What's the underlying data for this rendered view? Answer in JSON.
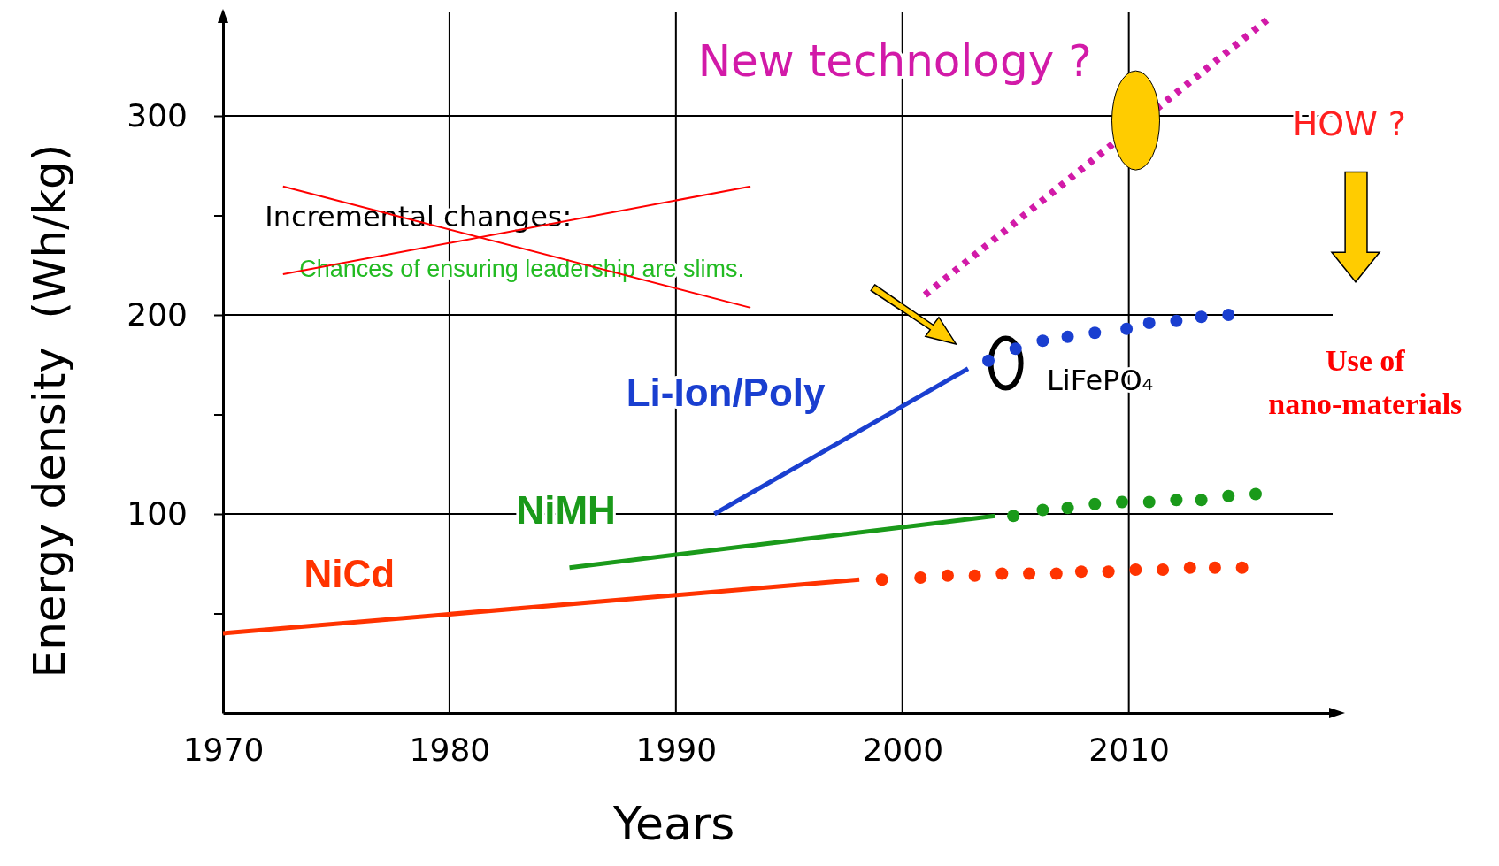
{
  "chart_data": {
    "type": "line",
    "xlabel": "Years",
    "ylabel": "Energy density  (Wh/kg)",
    "xlim": [
      1970,
      2019
    ],
    "ylim": [
      0,
      352
    ],
    "xticks": [
      1970,
      1980,
      1990,
      2000,
      2010
    ],
    "yticks": [
      {
        "value": 50,
        "label": null
      },
      100,
      {
        "value": 150,
        "label": null
      },
      200,
      {
        "value": 250,
        "label": null
      },
      300
    ],
    "grid": true,
    "legend": false,
    "line_style": "solid",
    "series": [
      {
        "name": "NiCd",
        "color": "#ff3300",
        "x": [
          1970,
          1998.1
        ],
        "values": [
          40,
          67
        ]
      },
      {
        "color": "#ff3300",
        "type": "scatter",
        "marker": "circle",
        "x": [
          1999.1,
          2000.8,
          2002.0,
          2003.2,
          2004.4,
          2005.6,
          2006.8,
          2007.9,
          2009.1,
          2010.3,
          2011.5,
          2012.7,
          2013.8,
          2015.0
        ],
        "values": [
          67,
          68,
          69,
          69,
          70,
          70,
          70,
          71,
          71,
          72,
          72,
          73,
          73,
          73
        ]
      },
      {
        "name": "NiMH",
        "color": "#1a9a1a",
        "x": [
          1985.3,
          2004.1
        ],
        "values": [
          73,
          99
        ]
      },
      {
        "color": "#1a9a1a",
        "type": "scatter",
        "marker": "circle",
        "x": [
          2004.9,
          2006.2,
          2007.3,
          2008.5,
          2009.7,
          2010.9,
          2012.1,
          2013.2,
          2014.4,
          2015.6
        ],
        "values": [
          99,
          102,
          103,
          105,
          106,
          106,
          107,
          107,
          109,
          110
        ]
      },
      {
        "name": "Li-Ion/Poly",
        "color": "#1a3fd0",
        "x": [
          1991.7,
          2002.9
        ],
        "values": [
          100,
          173
        ]
      },
      {
        "color": "#1a3fd0",
        "type": "scatter",
        "marker": "circle",
        "x": [
          2003.8,
          2005.0,
          2006.2,
          2007.3,
          2008.5,
          2009.9,
          2010.9,
          2012.1,
          2013.2,
          2014.4
        ],
        "values": [
          177,
          183,
          187,
          189,
          191,
          193,
          196,
          197,
          199,
          200
        ]
      },
      {
        "color": "#d21aa8",
        "line_style": "dotted",
        "x": [
          2001.0,
          2016.3
        ],
        "values": [
          210,
          350
        ]
      }
    ],
    "annotations": [
      "New technology ?",
      "HOW ?",
      "Use of nano-materials",
      "Incremental changes:",
      "Chances of ensuring leadership are slims.",
      "LiFePO₄"
    ]
  }
}
